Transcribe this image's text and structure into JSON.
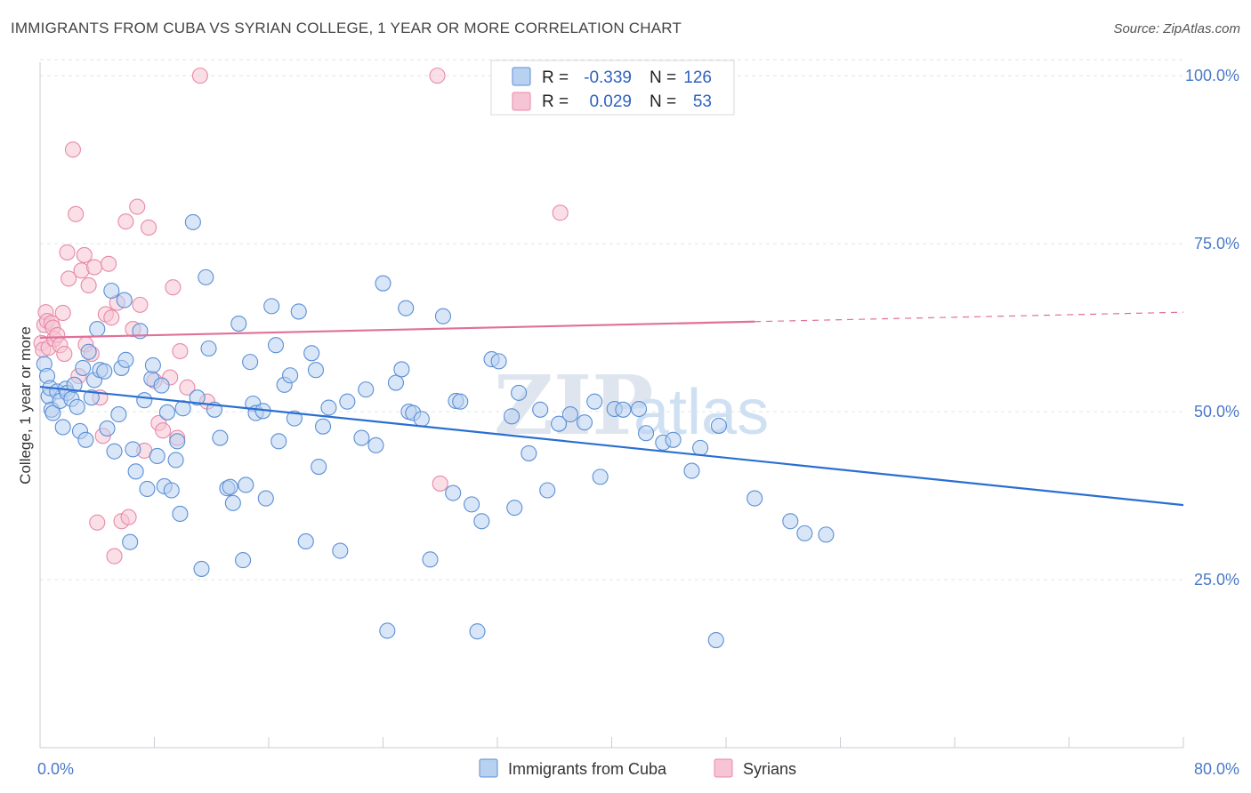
{
  "title": "IMMIGRANTS FROM CUBA VS SYRIAN COLLEGE, 1 YEAR OR MORE CORRELATION CHART",
  "source": "Source: ZipAtlas.com",
  "watermark": {
    "zip": "ZIP",
    "atlas": "atlas"
  },
  "colors": {
    "cuba": "#5b8fd6",
    "cuba_fill": "#b9d1f0",
    "cuba_line": "#2a6fd1",
    "syrians": "#e889a8",
    "syrians_fill": "#f6c4d4",
    "syrians_line": "#e0709a",
    "tick_text": "#4a79c8",
    "grid": "#e1e4ea"
  },
  "stats": {
    "rows": [
      {
        "r_label": "R =",
        "r_value": "-0.339",
        "n_label": "N =",
        "n_value": "126"
      },
      {
        "r_label": "R =",
        "r_value": "0.029",
        "n_label": "N =",
        "n_value": "53"
      }
    ]
  },
  "legend": {
    "items": [
      "Immigrants from Cuba",
      "Syrians"
    ]
  },
  "chart_data": {
    "type": "scatter",
    "title": "IMMIGRANTS FROM CUBA VS SYRIAN COLLEGE, 1 YEAR OR MORE CORRELATION CHART",
    "xlabel": "",
    "ylabel": "College, 1 year or more",
    "xlim": [
      0,
      80
    ],
    "ylim": [
      0,
      102
    ],
    "x_tick_labels": [
      "0.0%",
      "80.0%"
    ],
    "y_ticks": [
      25,
      50,
      75,
      100
    ],
    "y_tick_labels": [
      "25.0%",
      "50.0%",
      "75.0%",
      "100.0%"
    ],
    "grid": true,
    "legend_position": "bottom",
    "series": [
      {
        "name": "Immigrants from Cuba",
        "r": -0.339,
        "n": 126,
        "trend": {
          "x": [
            0,
            80
          ],
          "y": [
            53.7,
            36.1
          ]
        },
        "points": [
          [
            0.3,
            57.1
          ],
          [
            0.5,
            55.3
          ],
          [
            0.6,
            52.3
          ],
          [
            0.7,
            53.5
          ],
          [
            0.8,
            50.3
          ],
          [
            0.9,
            49.8
          ],
          [
            1.2,
            53.0
          ],
          [
            1.4,
            51.6
          ],
          [
            1.6,
            47.7
          ],
          [
            1.8,
            53.4
          ],
          [
            1.9,
            52.8
          ],
          [
            2.2,
            51.9
          ],
          [
            2.4,
            54.0
          ],
          [
            2.6,
            50.7
          ],
          [
            2.8,
            47.1
          ],
          [
            3.0,
            56.5
          ],
          [
            3.2,
            45.8
          ],
          [
            3.4,
            58.9
          ],
          [
            3.6,
            52.1
          ],
          [
            3.8,
            54.7
          ],
          [
            4.0,
            62.3
          ],
          [
            4.2,
            56.2
          ],
          [
            4.5,
            56.0
          ],
          [
            4.7,
            47.5
          ],
          [
            5.0,
            68.0
          ],
          [
            5.2,
            44.1
          ],
          [
            5.5,
            49.6
          ],
          [
            5.7,
            56.5
          ],
          [
            5.9,
            66.6
          ],
          [
            6.0,
            57.7
          ],
          [
            6.3,
            30.6
          ],
          [
            6.5,
            44.4
          ],
          [
            6.7,
            41.1
          ],
          [
            7.0,
            62.0
          ],
          [
            7.3,
            51.7
          ],
          [
            7.5,
            38.5
          ],
          [
            7.8,
            54.9
          ],
          [
            7.9,
            56.9
          ],
          [
            8.2,
            43.4
          ],
          [
            8.5,
            53.9
          ],
          [
            8.7,
            38.9
          ],
          [
            8.9,
            49.9
          ],
          [
            9.2,
            38.3
          ],
          [
            9.5,
            42.8
          ],
          [
            9.6,
            45.6
          ],
          [
            9.8,
            34.8
          ],
          [
            10.0,
            50.5
          ],
          [
            10.7,
            78.2
          ],
          [
            11.0,
            52.1
          ],
          [
            11.3,
            26.6
          ],
          [
            11.6,
            70.0
          ],
          [
            11.8,
            59.4
          ],
          [
            12.2,
            50.3
          ],
          [
            12.6,
            46.1
          ],
          [
            13.1,
            38.6
          ],
          [
            13.3,
            38.8
          ],
          [
            13.5,
            36.4
          ],
          [
            13.9,
            63.1
          ],
          [
            14.2,
            27.9
          ],
          [
            14.4,
            39.1
          ],
          [
            14.7,
            57.4
          ],
          [
            14.9,
            51.2
          ],
          [
            15.1,
            49.8
          ],
          [
            15.6,
            50.1
          ],
          [
            15.8,
            37.1
          ],
          [
            16.2,
            65.7
          ],
          [
            16.5,
            59.9
          ],
          [
            16.7,
            45.6
          ],
          [
            17.1,
            54.0
          ],
          [
            17.5,
            55.4
          ],
          [
            17.8,
            49.0
          ],
          [
            18.1,
            64.9
          ],
          [
            18.6,
            30.7
          ],
          [
            19.0,
            58.7
          ],
          [
            19.3,
            56.2
          ],
          [
            19.5,
            41.8
          ],
          [
            19.8,
            47.8
          ],
          [
            20.2,
            50.6
          ],
          [
            21.0,
            29.3
          ],
          [
            21.5,
            51.5
          ],
          [
            22.5,
            46.1
          ],
          [
            22.8,
            53.3
          ],
          [
            23.5,
            45.0
          ],
          [
            24.0,
            69.1
          ],
          [
            24.3,
            17.4
          ],
          [
            24.9,
            54.3
          ],
          [
            25.3,
            56.3
          ],
          [
            25.6,
            65.4
          ],
          [
            25.8,
            50.0
          ],
          [
            26.1,
            49.8
          ],
          [
            26.7,
            48.9
          ],
          [
            27.3,
            28.0
          ],
          [
            28.2,
            64.2
          ],
          [
            28.9,
            37.9
          ],
          [
            29.1,
            51.6
          ],
          [
            29.4,
            51.5
          ],
          [
            30.2,
            36.2
          ],
          [
            30.6,
            17.3
          ],
          [
            30.9,
            33.7
          ],
          [
            31.6,
            57.8
          ],
          [
            32.1,
            57.5
          ],
          [
            33.0,
            49.3
          ],
          [
            33.2,
            35.7
          ],
          [
            33.5,
            52.8
          ],
          [
            34.2,
            43.8
          ],
          [
            35.0,
            50.3
          ],
          [
            35.5,
            38.3
          ],
          [
            36.3,
            48.2
          ],
          [
            37.1,
            49.6
          ],
          [
            38.1,
            48.4
          ],
          [
            38.8,
            51.5
          ],
          [
            39.2,
            40.3
          ],
          [
            40.2,
            50.4
          ],
          [
            40.8,
            50.3
          ],
          [
            41.9,
            50.4
          ],
          [
            42.4,
            46.8
          ],
          [
            43.6,
            45.4
          ],
          [
            44.3,
            45.8
          ],
          [
            45.6,
            41.2
          ],
          [
            46.2,
            44.6
          ],
          [
            47.3,
            16.0
          ],
          [
            47.5,
            47.9
          ],
          [
            50.0,
            37.1
          ],
          [
            52.5,
            33.7
          ],
          [
            53.5,
            31.9
          ],
          [
            55.0,
            31.7
          ]
        ]
      },
      {
        "name": "Syrians",
        "r": 0.029,
        "n": 53,
        "trend": {
          "x": [
            0,
            50
          ],
          "y": [
            61.0,
            63.4
          ]
        },
        "trend_dashed": {
          "x": [
            50,
            80
          ],
          "y": [
            63.4,
            64.8
          ]
        },
        "points": [
          [
            0.1,
            60.2
          ],
          [
            0.2,
            59.2
          ],
          [
            0.3,
            62.9
          ],
          [
            0.4,
            64.8
          ],
          [
            0.5,
            63.5
          ],
          [
            0.6,
            59.5
          ],
          [
            0.8,
            63.2
          ],
          [
            0.9,
            62.5
          ],
          [
            1.0,
            60.8
          ],
          [
            1.2,
            61.4
          ],
          [
            1.4,
            59.9
          ],
          [
            1.6,
            64.7
          ],
          [
            1.7,
            58.6
          ],
          [
            1.9,
            73.7
          ],
          [
            2.0,
            69.8
          ],
          [
            2.3,
            89.0
          ],
          [
            2.5,
            79.4
          ],
          [
            2.7,
            55.3
          ],
          [
            2.9,
            71.0
          ],
          [
            3.1,
            73.3
          ],
          [
            3.2,
            60.0
          ],
          [
            3.4,
            68.8
          ],
          [
            3.6,
            58.6
          ],
          [
            3.8,
            71.5
          ],
          [
            4.0,
            33.5
          ],
          [
            4.2,
            52.1
          ],
          [
            4.4,
            46.4
          ],
          [
            4.6,
            64.5
          ],
          [
            4.8,
            72.0
          ],
          [
            5.0,
            64.0
          ],
          [
            5.2,
            28.5
          ],
          [
            5.4,
            66.2
          ],
          [
            5.7,
            33.7
          ],
          [
            6.0,
            78.3
          ],
          [
            6.2,
            34.3
          ],
          [
            6.5,
            62.3
          ],
          [
            6.8,
            80.5
          ],
          [
            7.0,
            65.9
          ],
          [
            7.3,
            44.2
          ],
          [
            7.6,
            77.4
          ],
          [
            8.0,
            54.6
          ],
          [
            8.3,
            48.3
          ],
          [
            8.6,
            47.2
          ],
          [
            9.1,
            55.1
          ],
          [
            9.3,
            68.5
          ],
          [
            9.6,
            46.1
          ],
          [
            9.8,
            59.0
          ],
          [
            10.3,
            53.6
          ],
          [
            11.2,
            100.0
          ],
          [
            11.7,
            51.5
          ],
          [
            27.8,
            100.0
          ],
          [
            28.0,
            39.3
          ],
          [
            36.4,
            79.6
          ]
        ]
      }
    ]
  }
}
